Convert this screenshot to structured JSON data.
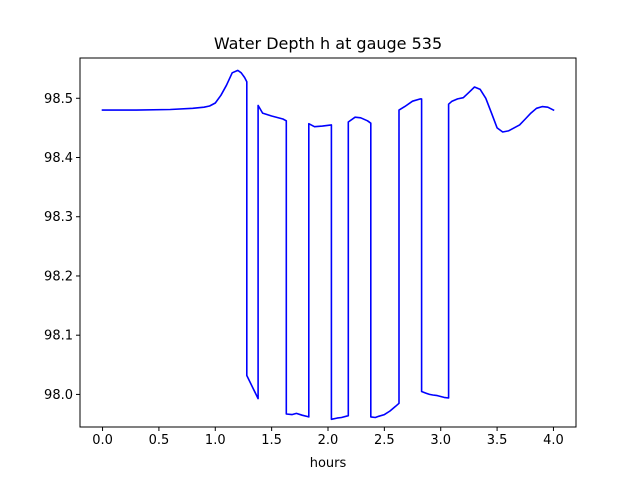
{
  "chart_data": {
    "type": "line",
    "title": "Water Depth h at gauge 535",
    "xlabel": "hours",
    "ylabel": "",
    "xlim": [
      -0.2,
      4.2
    ],
    "ylim": [
      97.945,
      98.568
    ],
    "xticks": [
      0.0,
      0.5,
      1.0,
      1.5,
      2.0,
      2.5,
      3.0,
      3.5,
      4.0
    ],
    "xtick_labels": [
      "0.0",
      "0.5",
      "1.0",
      "1.5",
      "2.0",
      "2.5",
      "3.0",
      "3.5",
      "4.0"
    ],
    "yticks": [
      98.0,
      98.1,
      98.2,
      98.3,
      98.4,
      98.5
    ],
    "ytick_labels": [
      "98.0",
      "98.1",
      "98.2",
      "98.3",
      "98.4",
      "98.5"
    ],
    "grid": false,
    "legend": "none",
    "series": [
      {
        "color": "#0000ff",
        "x": [
          0.0,
          0.3,
          0.6,
          0.8,
          0.9,
          0.95,
          1.0,
          1.05,
          1.1,
          1.15,
          1.2,
          1.23,
          1.26,
          1.28,
          1.28,
          1.38,
          1.38,
          1.42,
          1.5,
          1.6,
          1.63,
          1.63,
          1.68,
          1.72,
          1.77,
          1.83,
          1.83,
          1.88,
          1.95,
          2.03,
          2.03,
          2.08,
          2.12,
          2.18,
          2.18,
          2.24,
          2.29,
          2.35,
          2.38,
          2.38,
          2.42,
          2.45,
          2.5,
          2.55,
          2.6,
          2.63,
          2.63,
          2.68,
          2.75,
          2.82,
          2.83,
          2.83,
          2.87,
          2.9,
          2.93,
          2.97,
          3.03,
          3.07,
          3.07,
          3.1,
          3.15,
          3.2,
          3.25,
          3.3,
          3.35,
          3.4,
          3.45,
          3.5,
          3.55,
          3.6,
          3.65,
          3.7,
          3.75,
          3.8,
          3.85,
          3.9,
          3.95,
          4.0
        ],
        "y": [
          98.48,
          98.48,
          98.481,
          98.483,
          98.485,
          98.487,
          98.492,
          98.505,
          98.522,
          98.543,
          98.547,
          98.543,
          98.535,
          98.528,
          98.032,
          97.993,
          98.488,
          98.475,
          98.47,
          98.465,
          98.462,
          97.967,
          97.966,
          97.968,
          97.965,
          97.962,
          98.457,
          98.452,
          98.453,
          98.455,
          97.958,
          97.96,
          97.961,
          97.964,
          98.46,
          98.468,
          98.467,
          98.462,
          98.458,
          97.962,
          97.961,
          97.963,
          97.966,
          97.972,
          97.98,
          97.985,
          98.48,
          98.486,
          98.495,
          98.499,
          98.499,
          98.005,
          98.002,
          98.0,
          97.999,
          97.998,
          97.995,
          97.994,
          98.49,
          98.495,
          98.499,
          98.501,
          98.51,
          98.519,
          98.515,
          98.5,
          98.475,
          98.45,
          98.443,
          98.445,
          98.45,
          98.455,
          98.465,
          98.475,
          98.483,
          98.486,
          98.485,
          98.48
        ]
      }
    ]
  }
}
